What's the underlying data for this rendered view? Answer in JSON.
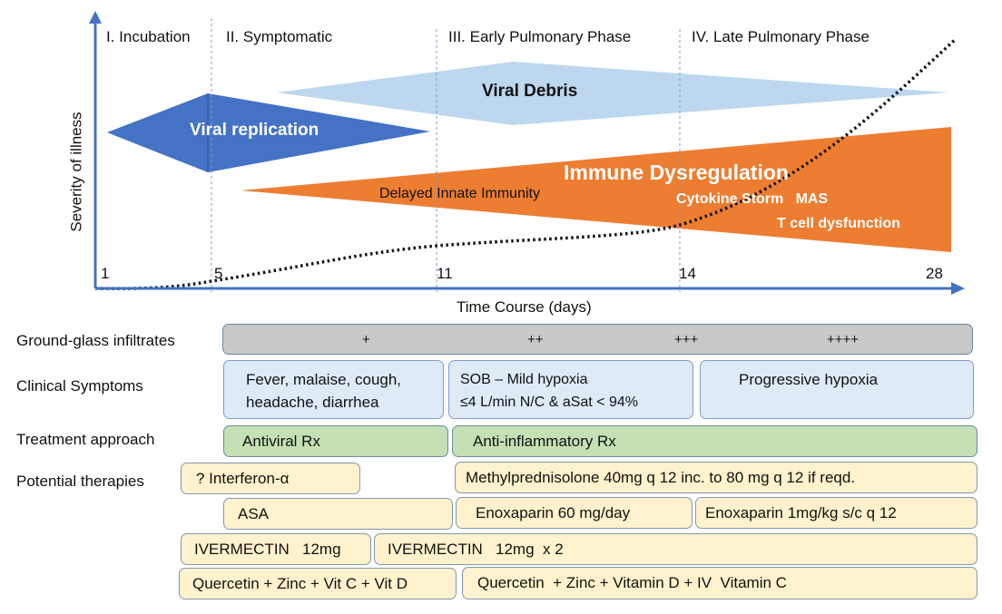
{
  "phases": [
    "I. Incubation",
    "II. Symptomatic",
    "III. Early Pulmonary Phase",
    "IV. Late Pulmonary Phase"
  ],
  "y_axis_label": "Severity of illness",
  "x_axis_label": "Time Course (days)",
  "ticks": [
    "1",
    "5",
    "11",
    "14",
    "28"
  ],
  "shapes": {
    "viral_replication": "Viral replication",
    "viral_debris": "Viral Debris",
    "immune_dysregulation": "Immune Dysregulation",
    "delayed_innate": "Delayed Innate Immunity",
    "cytokine": "Cytokine Storm   MAS",
    "tcell": "T cell dysfunction"
  },
  "colors": {
    "replication": "#4472C4",
    "debris": "#BDD7EE",
    "immune": "#ED7D31",
    "axis": "#4472C4"
  },
  "rows": {
    "ground_glass": {
      "label": "Ground-glass infiltrates",
      "levels": [
        "+",
        "++",
        "+++",
        "++++"
      ]
    },
    "clinical": {
      "label": "Clinical Symptoms",
      "boxes": [
        "Fever, malaise, cough,\nheadache, diarrhea",
        "SOB – Mild hypoxia\n≤4 L/min N/C & aSat < 94%",
        "Progressive hypoxia"
      ]
    },
    "treatment": {
      "label": "Treatment approach",
      "boxes": [
        "Antiviral Rx",
        "Anti-inflammatory Rx"
      ]
    },
    "therapies": {
      "label": "Potential therapies",
      "boxes": [
        "? Interferon-α",
        "Methylprednisolone 40mg q 12 inc. to 80 mg q 12 if reqd.",
        "ASA",
        "Enoxaparin 60 mg/day",
        "Enoxaparin 1mg/kg s/c q 12",
        "IVERMECTIN   12mg",
        "IVERMECTIN   12mg  x 2",
        "Quercetin + Zinc + Vit C + Vit D",
        "Quercetin  + Zinc + Vitamin D + IV  Vitamin C"
      ]
    }
  }
}
